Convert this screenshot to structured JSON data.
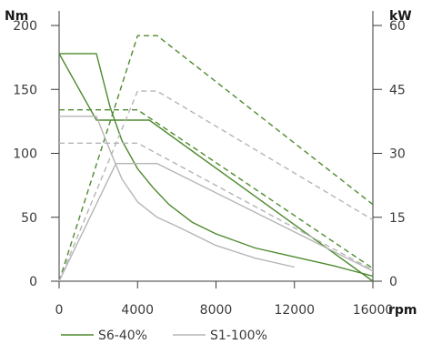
{
  "chart_data": {
    "type": "line",
    "title": "",
    "xlabel": "rpm",
    "ylabel_left": "Nm",
    "ylabel_right": "kW",
    "xlim": [
      0,
      16000
    ],
    "ylim_left": [
      0,
      200
    ],
    "ylim_right": [
      0,
      60
    ],
    "x_ticks": [
      0,
      4000,
      8000,
      12000,
      16000
    ],
    "y_ticks_left": [
      0,
      50,
      100,
      150,
      200
    ],
    "y_ticks_right": [
      0,
      15,
      30,
      45,
      60
    ],
    "grid": false,
    "legend": {
      "placement": "bottom-left",
      "entries": [
        "S6-40%",
        "S1-100%"
      ]
    },
    "colors": {
      "s6": "#4e8a2f",
      "s1": "#b5b5b5",
      "axis": "#3a3a3a"
    },
    "series": [
      {
        "name": "S6-40%",
        "kind": "torque-peak",
        "axis": "left",
        "style": "solid",
        "x": [
          0,
          1900,
          2600,
          3200,
          4000,
          4800,
          5600,
          6800,
          8000,
          10000,
          12000,
          14000,
          16000
        ],
        "y": [
          178,
          178,
          136,
          110,
          88,
          73,
          60,
          46,
          37,
          26,
          19,
          12,
          4
        ]
      },
      {
        "name": "S6-40%",
        "kind": "torque-continuous",
        "axis": "left",
        "style": "solid",
        "x": [
          0,
          1900,
          4600,
          16000
        ],
        "y": [
          178,
          126,
          126,
          0
        ]
      },
      {
        "name": "S6-40%",
        "kind": "power-peak",
        "axis": "right",
        "style": "dashed",
        "x": [
          0,
          4000,
          5000,
          16000
        ],
        "y": [
          0,
          57.6,
          57.6,
          18
        ]
      },
      {
        "name": "S6-40%",
        "kind": "power-continuous",
        "axis": "right",
        "style": "dashed",
        "x": [
          0,
          4000,
          16000
        ],
        "y": [
          40.2,
          40.2,
          3
        ]
      },
      {
        "name": "S1-100%",
        "kind": "torque-peak",
        "axis": "left",
        "style": "solid",
        "x": [
          0,
          1900,
          2600,
          3200,
          4000,
          5000,
          6000,
          8000,
          10000,
          12000
        ],
        "y": [
          129,
          129,
          102,
          80,
          62,
          50,
          43,
          28,
          18,
          11
        ]
      },
      {
        "name": "S1-100%",
        "kind": "torque-continuous",
        "axis": "left",
        "style": "solid",
        "x": [
          0,
          2900,
          5000,
          16000
        ],
        "y": [
          0,
          92,
          92,
          8
        ]
      },
      {
        "name": "S1-100%",
        "kind": "power-peak",
        "axis": "right",
        "style": "dashed",
        "x": [
          0,
          4000,
          5000,
          16000
        ],
        "y": [
          0,
          44.6,
          44.6,
          14.4
        ]
      },
      {
        "name": "S1-100%",
        "kind": "power-continuous",
        "axis": "right",
        "style": "dashed",
        "x": [
          0,
          4000,
          16000
        ],
        "y": [
          32.4,
          32.4,
          2.6
        ]
      }
    ]
  }
}
